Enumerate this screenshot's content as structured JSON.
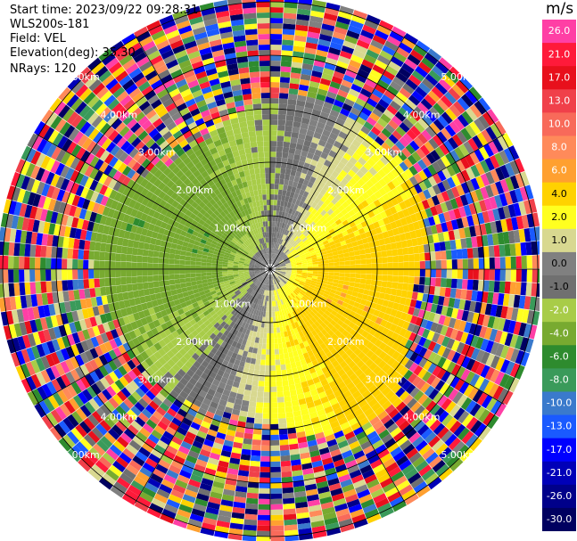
{
  "header": {
    "start_time": "Start time: 2023/09/22 09:28:31",
    "instrument": "WLS200s-181",
    "field": "Field: VEL",
    "elevation": "Elevation(deg): 35.30",
    "nrays": "NRays: 120"
  },
  "chart_data": {
    "type": "heatmap",
    "projection": "polar-ppi",
    "field": "VEL",
    "n_rays": 120,
    "elevation_deg": 35.3,
    "range_rings_km": [
      1.0,
      2.0,
      3.0,
      4.0,
      5.0
    ],
    "range_ring_labels": [
      "1.00km",
      "2.00km",
      "3.00km",
      "4.00km",
      "5.00km"
    ],
    "max_range_km": 5.05,
    "colorbar": {
      "unit": "m/s",
      "ticks": [
        "26.0",
        "21.0",
        "17.0",
        "13.0",
        "10.0",
        "8.0",
        "6.0",
        "4.0",
        "2.0",
        "1.0",
        "0.0",
        "-1.0",
        "-2.0",
        "-4.0",
        "-6.0",
        "-8.0",
        "-10.0",
        "-13.0",
        "-17.0",
        "-21.0",
        "-26.0",
        "-30.0"
      ],
      "colors": [
        "#ff3fa5",
        "#ff1a3a",
        "#e8101c",
        "#f0404a",
        "#f86a5a",
        "#ff8a5a",
        "#ffa030",
        "#ffd200",
        "#ffff20",
        "#d8d890",
        "#808080",
        "#707070",
        "#a8cc48",
        "#78aa30",
        "#2e8b2e",
        "#3a9a5a",
        "#3a7acc",
        "#1a5aff",
        "#0000ff",
        "#0000b8",
        "#00008a",
        "#000060"
      ]
    }
  }
}
